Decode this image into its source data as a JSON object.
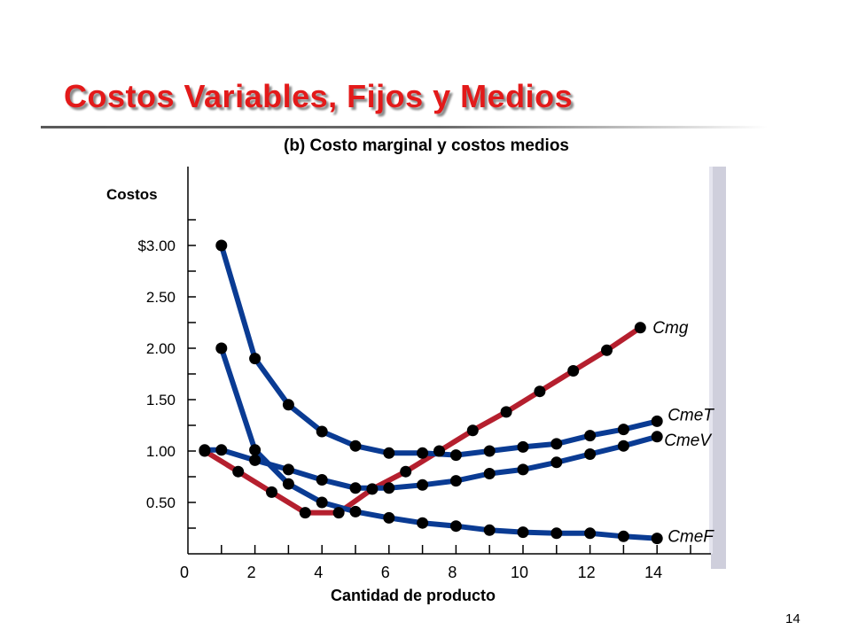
{
  "slide": {
    "title": "Costos Variables, Fijos y Medios",
    "page_number": "14"
  },
  "chart_data": {
    "type": "line",
    "title": "(b) Costo marginal y costos medios",
    "ylabel": "Costos",
    "xlabel": "Cantidad de producto",
    "xlim": [
      0,
      15.5
    ],
    "ylim": [
      0,
      3.75
    ],
    "x_ticks": [
      0,
      2,
      4,
      6,
      8,
      10,
      12,
      14
    ],
    "x_tick_labels": [
      "0",
      "2",
      "4",
      "6",
      "8",
      "10",
      "12",
      "14"
    ],
    "y_ticks": [
      0.5,
      1.0,
      1.5,
      2.0,
      2.5,
      3.0
    ],
    "y_tick_labels": [
      "0.50",
      "1.00",
      "1.50",
      "2.00",
      "2.50",
      "$3.00"
    ],
    "grid": false,
    "legend": "labels at line ends",
    "series": [
      {
        "name": "Cmg",
        "color": "#b51f2e",
        "points": [
          [
            0.5,
            1.0
          ],
          [
            1.5,
            0.8
          ],
          [
            2.5,
            0.6
          ],
          [
            3.5,
            0.4
          ],
          [
            4.5,
            0.4
          ],
          [
            5.5,
            0.63
          ],
          [
            6.5,
            0.8
          ],
          [
            7.5,
            1.0
          ],
          [
            8.5,
            1.2
          ],
          [
            9.5,
            1.38
          ],
          [
            10.5,
            1.58
          ],
          [
            11.5,
            1.78
          ],
          [
            12.5,
            1.98
          ],
          [
            13.5,
            2.2
          ]
        ]
      },
      {
        "name": "CmeT",
        "color": "#0a3b93",
        "points": [
          [
            1,
            3.0
          ],
          [
            2,
            1.9
          ],
          [
            3,
            1.45
          ],
          [
            4,
            1.19
          ],
          [
            5,
            1.05
          ],
          [
            6,
            0.98
          ],
          [
            7,
            0.98
          ],
          [
            8,
            0.96
          ],
          [
            9,
            1.0
          ],
          [
            10,
            1.04
          ],
          [
            11,
            1.07
          ],
          [
            12,
            1.15
          ],
          [
            13,
            1.21
          ],
          [
            14,
            1.29
          ]
        ]
      },
      {
        "name": "CmeV",
        "color": "#0a3b93",
        "points": [
          [
            0.5,
            1.01
          ],
          [
            1,
            1.01
          ],
          [
            2,
            0.91
          ],
          [
            3,
            0.82
          ],
          [
            4,
            0.72
          ],
          [
            5,
            0.64
          ],
          [
            6,
            0.64
          ],
          [
            7,
            0.67
          ],
          [
            8,
            0.71
          ],
          [
            9,
            0.78
          ],
          [
            10,
            0.82
          ],
          [
            11,
            0.89
          ],
          [
            12,
            0.97
          ],
          [
            13,
            1.05
          ],
          [
            14,
            1.14
          ]
        ]
      },
      {
        "name": "CmeF",
        "color": "#0a3b93",
        "points": [
          [
            1,
            2.0
          ],
          [
            2,
            1.01
          ],
          [
            3,
            0.68
          ],
          [
            4,
            0.5
          ],
          [
            5,
            0.41
          ],
          [
            6,
            0.35
          ],
          [
            7,
            0.3
          ],
          [
            8,
            0.27
          ],
          [
            9,
            0.23
          ],
          [
            10,
            0.21
          ],
          [
            11,
            0.2
          ],
          [
            12,
            0.2
          ],
          [
            13,
            0.17
          ],
          [
            14,
            0.15
          ]
        ]
      }
    ]
  }
}
